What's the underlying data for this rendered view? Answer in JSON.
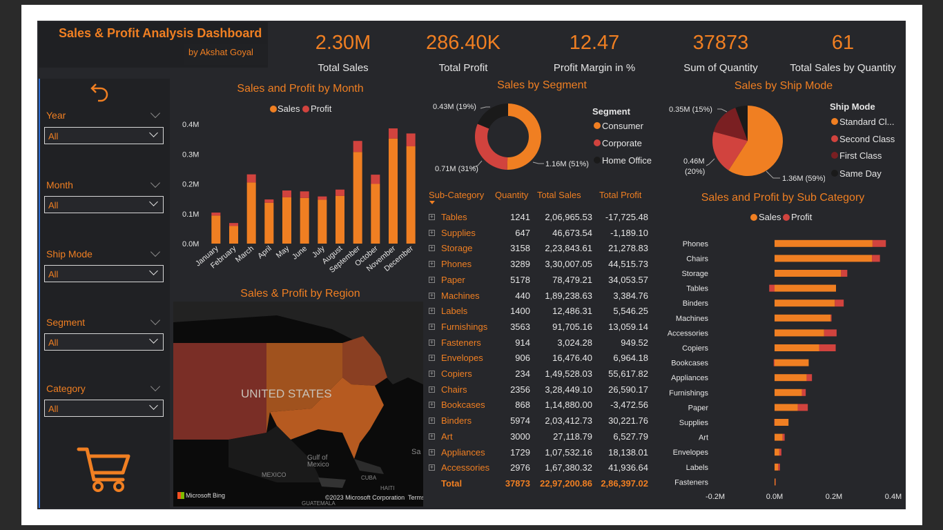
{
  "header": {
    "title": "Sales & Profit Analysis Dashboard",
    "byline": "by Akshat Goyal"
  },
  "kpis": [
    {
      "value": "2.30M",
      "label": "Total Sales"
    },
    {
      "value": "286.40K",
      "label": "Total Profit"
    },
    {
      "value": "12.47",
      "label": "Profit Margin in %"
    },
    {
      "value": "37873",
      "label": "Sum of Quantity"
    },
    {
      "value": "61",
      "label": "Total Sales by Quantity"
    }
  ],
  "filters": [
    {
      "label": "Year",
      "value": "All"
    },
    {
      "label": "Month",
      "value": "All"
    },
    {
      "label": "Ship Mode",
      "value": "All"
    },
    {
      "label": "Segment",
      "value": "All"
    },
    {
      "label": "Category",
      "value": "All"
    }
  ],
  "colors": {
    "sales": "#f07f22",
    "profit": "#d1433e",
    "bg": "#26272b",
    "dark": "#1a1a1a",
    "first_class": "#7a1f22"
  },
  "icons": {
    "back": "back-arrow-icon",
    "cart": "cart-icon"
  },
  "monthly": {
    "title": "Sales and Profit by Month",
    "legend": [
      "Sales",
      "Profit"
    ],
    "ticks": [
      "0.0M",
      "0.1M",
      "0.2M",
      "0.3M",
      "0.4M"
    ]
  },
  "segment": {
    "title": "Sales by Segment",
    "legend_title": "Segment",
    "legend": [
      "Consumer",
      "Corporate",
      "Home Office"
    ],
    "labels": [
      "1.16M (51%)",
      "0.71M (31%)",
      "0.43M (19%)"
    ]
  },
  "shipmode": {
    "title": "Sales by Ship Mode",
    "legend_title": "Ship Mode",
    "legend": [
      "Standard Cl...",
      "Second Class",
      "First Class",
      "Same Day"
    ],
    "labels": [
      "1.36M (59%)",
      "0.46M",
      "(20%)",
      "0.35M (15%)"
    ]
  },
  "region": {
    "title": "Sales & Profit by Region",
    "country": "UNITED STATES",
    "places": [
      "Gulf of",
      "Mexico",
      "MEXICO",
      "CUBA",
      "HAITI",
      "GUATEMALA",
      "Sa"
    ],
    "bing": "Microsoft Bing",
    "copyright": "©2023 Microsoft Corporation",
    "terms": "Terms"
  },
  "subcat_chart": {
    "title": "Sales and Profit by Sub Category",
    "legend": [
      "Sales",
      "Profit"
    ],
    "ticks": [
      "-0.2M",
      "0.0M",
      "0.2M",
      "0.4M"
    ]
  },
  "table": {
    "headers": [
      "Sub-Category",
      "Quantity",
      "Total Sales",
      "Total Profit"
    ],
    "rows": [
      [
        "Tables",
        "1241",
        "2,06,965.53",
        "-17,725.48"
      ],
      [
        "Supplies",
        "647",
        "46,673.54",
        "-1,189.10"
      ],
      [
        "Storage",
        "3158",
        "2,23,843.61",
        "21,278.83"
      ],
      [
        "Phones",
        "3289",
        "3,30,007.05",
        "44,515.73"
      ],
      [
        "Paper",
        "5178",
        "78,479.21",
        "34,053.57"
      ],
      [
        "Machines",
        "440",
        "1,89,238.63",
        "3,384.76"
      ],
      [
        "Labels",
        "1400",
        "12,486.31",
        "5,546.25"
      ],
      [
        "Furnishings",
        "3563",
        "91,705.16",
        "13,059.14"
      ],
      [
        "Fasteners",
        "914",
        "3,024.28",
        "949.52"
      ],
      [
        "Envelopes",
        "906",
        "16,476.40",
        "6,964.18"
      ],
      [
        "Copiers",
        "234",
        "1,49,528.03",
        "55,617.82"
      ],
      [
        "Chairs",
        "2356",
        "3,28,449.10",
        "26,590.17"
      ],
      [
        "Bookcases",
        "868",
        "1,14,880.00",
        "-3,472.56"
      ],
      [
        "Binders",
        "5974",
        "2,03,412.73",
        "30,221.76"
      ],
      [
        "Art",
        "3000",
        "27,118.79",
        "6,527.79"
      ],
      [
        "Appliances",
        "1729",
        "1,07,532.16",
        "18,138.01"
      ],
      [
        "Accessories",
        "2976",
        "1,67,380.32",
        "41,936.64"
      ]
    ],
    "total": [
      "Total",
      "37873",
      "22,97,200.86",
      "2,86,397.02"
    ]
  },
  "chart_data": [
    {
      "type": "bar",
      "title": "Sales and Profit by Month",
      "stacked": true,
      "categories": [
        "January",
        "February",
        "March",
        "April",
        "May",
        "June",
        "July",
        "August",
        "September",
        "October",
        "November",
        "December"
      ],
      "series": [
        {
          "name": "Sales",
          "values": [
            0.094,
            0.059,
            0.205,
            0.137,
            0.155,
            0.153,
            0.147,
            0.16,
            0.307,
            0.2,
            0.352,
            0.326
          ]
        },
        {
          "name": "Profit",
          "values": [
            0.01,
            0.01,
            0.027,
            0.011,
            0.023,
            0.022,
            0.011,
            0.021,
            0.037,
            0.031,
            0.034,
            0.043
          ]
        }
      ],
      "ylim": [
        0,
        0.4
      ],
      "legend": "top",
      "grid": false
    },
    {
      "type": "pie",
      "title": "Sales by Segment",
      "donut": true,
      "labels": [
        "Consumer",
        "Corporate",
        "Home Office"
      ],
      "values": [
        1.16,
        0.71,
        0.43
      ],
      "percents": [
        51,
        31,
        19
      ]
    },
    {
      "type": "pie",
      "title": "Sales by Ship Mode",
      "labels": [
        "Standard Cl...",
        "Second Class",
        "First Class",
        "Same Day"
      ],
      "values": [
        1.36,
        0.46,
        0.35,
        0.13
      ],
      "percents": [
        59,
        20,
        15,
        6
      ]
    },
    {
      "type": "bar",
      "title": "Sales and Profit by Sub Category",
      "orientation": "horizontal",
      "categories": [
        "Phones",
        "Chairs",
        "Storage",
        "Tables",
        "Binders",
        "Machines",
        "Accessories",
        "Copiers",
        "Bookcases",
        "Appliances",
        "Furnishings",
        "Paper",
        "Supplies",
        "Art",
        "Envelopes",
        "Labels",
        "Fasteners"
      ],
      "series": [
        {
          "name": "Sales",
          "values": [
            0.33,
            0.328,
            0.224,
            0.207,
            0.203,
            0.189,
            0.167,
            0.15,
            0.115,
            0.108,
            0.092,
            0.078,
            0.047,
            0.027,
            0.016,
            0.012,
            0.003
          ]
        },
        {
          "name": "Profit",
          "values": [
            0.045,
            0.027,
            0.021,
            -0.018,
            0.03,
            0.003,
            0.042,
            0.056,
            -0.003,
            0.018,
            0.013,
            0.034,
            -0.001,
            0.007,
            0.007,
            0.006,
            0.001
          ]
        }
      ],
      "xlim": [
        -0.2,
        0.4
      ],
      "legend": "top"
    }
  ]
}
